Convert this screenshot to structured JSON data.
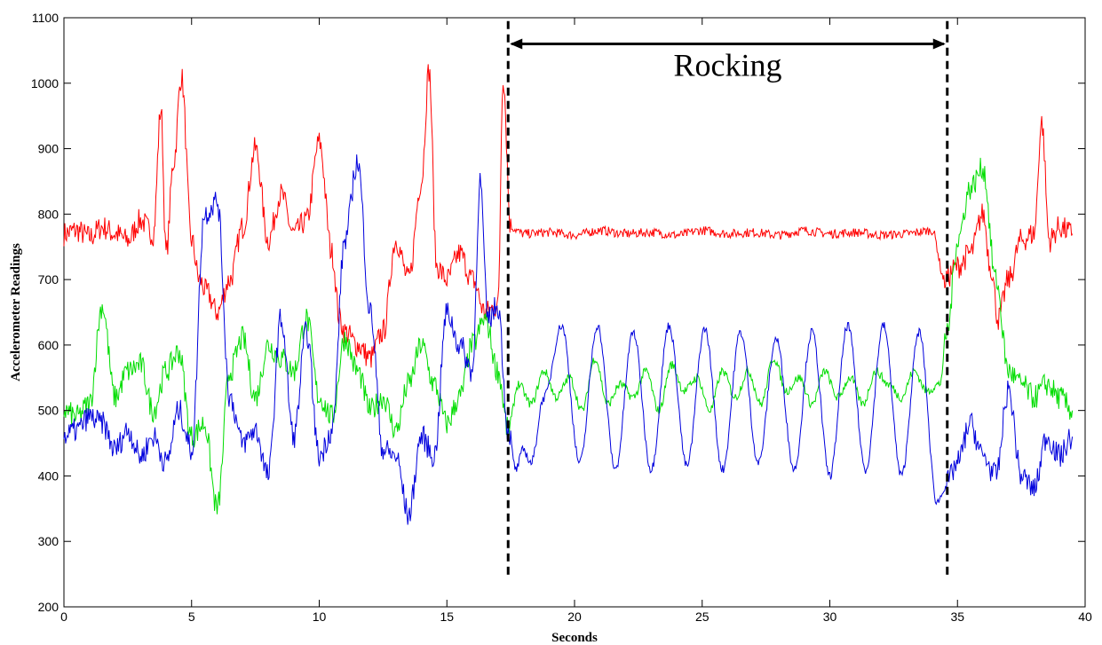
{
  "chart_data": {
    "type": "line",
    "xlabel": "Seconds",
    "ylabel": "Accelerometer Readings",
    "xlim": [
      0,
      40
    ],
    "ylim": [
      200,
      1100
    ],
    "xticks": [
      "0",
      "5",
      "10",
      "15",
      "20",
      "25",
      "30",
      "35",
      "40"
    ],
    "yticks": [
      "200",
      "300",
      "400",
      "500",
      "600",
      "700",
      "800",
      "900",
      "1000",
      "1100"
    ],
    "grid": false,
    "annotation": {
      "text": "Rocking",
      "x_start": 17.4,
      "x_end": 34.6,
      "arrow_y": 1060,
      "dash_y_bottom": 245,
      "dash_y_top": 1095
    },
    "series": [
      {
        "color": "#ff0000",
        "x": [
          0,
          0.5,
          1,
          1.5,
          2,
          2.5,
          3,
          3.5,
          3.8,
          4,
          4.3,
          4.6,
          5,
          5.3,
          5.6,
          6,
          6.5,
          7,
          7.5,
          8,
          8.5,
          9,
          9.5,
          10,
          10.5,
          10.8,
          11,
          11.5,
          12,
          12.5,
          13,
          13.5,
          14,
          14.3,
          14.6,
          15,
          15.5,
          16,
          16.5,
          17,
          17.2,
          17.5,
          18,
          19,
          20,
          21,
          22,
          23,
          24,
          25,
          26,
          27,
          28,
          29,
          30,
          31,
          32,
          33,
          34,
          34.5,
          35,
          35.5,
          36,
          36.3,
          36.6,
          37,
          37.5,
          38,
          38.3,
          38.6,
          39,
          39.5
        ],
        "y": [
          770,
          775,
          765,
          780,
          770,
          760,
          790,
          770,
          960,
          740,
          880,
          1010,
          760,
          700,
          680,
          650,
          700,
          780,
          900,
          760,
          830,
          770,
          790,
          910,
          740,
          640,
          620,
          600,
          580,
          620,
          760,
          700,
          850,
          1020,
          720,
          700,
          740,
          700,
          650,
          660,
          1010,
          780,
          770,
          772,
          768,
          775,
          770,
          772,
          768,
          775,
          770,
          772,
          768,
          775,
          770,
          772,
          768,
          770,
          775,
          700,
          720,
          740,
          800,
          720,
          640,
          700,
          760,
          770,
          940,
          760,
          780,
          770
        ]
      },
      {
        "color": "#00dd00",
        "x": [
          0,
          0.5,
          1,
          1.5,
          2,
          2.5,
          3,
          3.5,
          4,
          4.5,
          5,
          5.5,
          6,
          6.5,
          7,
          7.5,
          8,
          8.5,
          9,
          9.5,
          10,
          10.5,
          11,
          11.5,
          12,
          12.5,
          13,
          13.5,
          14,
          14.5,
          15,
          15.5,
          16,
          16.5,
          17,
          17.4,
          17.8,
          18.3,
          18.8,
          19.3,
          19.8,
          20.3,
          20.8,
          21.3,
          21.8,
          22.3,
          22.8,
          23.3,
          23.8,
          24.3,
          24.8,
          25.3,
          25.8,
          26.3,
          26.8,
          27.3,
          27.8,
          28.3,
          28.8,
          29.3,
          29.8,
          30.3,
          30.8,
          31.3,
          31.8,
          32.3,
          32.8,
          33.3,
          33.8,
          34.3,
          34.6,
          35,
          35.5,
          36,
          36.5,
          37,
          37.5,
          38,
          38.5,
          39,
          39.5
        ],
        "y": [
          500,
          490,
          510,
          660,
          520,
          560,
          570,
          500,
          560,
          590,
          460,
          480,
          350,
          560,
          610,
          520,
          600,
          580,
          560,
          640,
          520,
          490,
          610,
          560,
          500,
          520,
          470,
          540,
          600,
          540,
          480,
          520,
          600,
          640,
          560,
          470,
          540,
          510,
          560,
          520,
          550,
          500,
          580,
          510,
          540,
          520,
          560,
          500,
          570,
          530,
          550,
          500,
          560,
          520,
          560,
          510,
          580,
          530,
          550,
          510,
          560,
          520,
          550,
          510,
          560,
          540,
          520,
          560,
          530,
          540,
          620,
          760,
          840,
          870,
          700,
          560,
          540,
          520,
          540,
          520,
          500
        ]
      },
      {
        "color": "#0000dd",
        "x": [
          0,
          0.5,
          1,
          1.5,
          2,
          2.5,
          3,
          3.5,
          4,
          4.5,
          5,
          5.5,
          6,
          6.5,
          7,
          7.5,
          8,
          8.5,
          9,
          9.5,
          10,
          10.5,
          11,
          11.5,
          12,
          12.5,
          13,
          13.5,
          14,
          14.5,
          15,
          15.5,
          16,
          16.3,
          16.6,
          17,
          17.4,
          17.7,
          18,
          18.3,
          18.8,
          19.5,
          20.2,
          20.9,
          21.6,
          22.3,
          23,
          23.7,
          24.4,
          25.1,
          25.8,
          26.5,
          27.2,
          27.9,
          28.6,
          29.3,
          30,
          30.7,
          31.4,
          32.1,
          32.8,
          33.5,
          34.2,
          34.6,
          35,
          35.5,
          36,
          36.5,
          37,
          37.5,
          38,
          38.5,
          39,
          39.5
        ],
        "y": [
          460,
          470,
          490,
          480,
          440,
          470,
          430,
          460,
          420,
          500,
          440,
          800,
          820,
          520,
          450,
          470,
          400,
          640,
          460,
          620,
          430,
          470,
          760,
          880,
          650,
          440,
          430,
          340,
          460,
          430,
          650,
          600,
          560,
          850,
          640,
          660,
          470,
          410,
          440,
          420,
          520,
          630,
          420,
          630,
          410,
          620,
          410,
          630,
          415,
          625,
          410,
          620,
          420,
          610,
          410,
          620,
          400,
          630,
          410,
          630,
          400,
          620,
          360,
          390,
          420,
          480,
          430,
          400,
          530,
          400,
          380,
          460,
          430,
          460
        ]
      }
    ]
  }
}
